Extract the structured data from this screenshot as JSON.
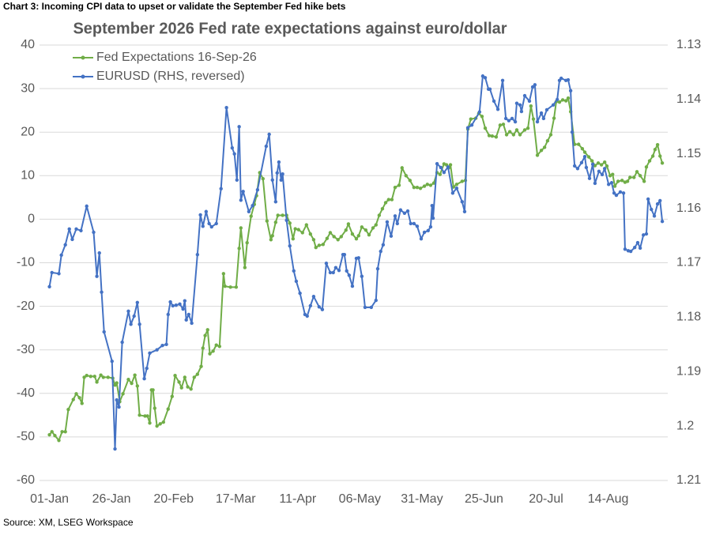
{
  "chart_data": {
    "type": "line",
    "header": "Chart 3: Incoming CPI data to upset or validate the September Fed hike bets",
    "title": "September 2026 Fed rate expectations against euro/dollar",
    "source": "Source: XM, LSEG Workspace",
    "xlim": [
      -4,
      249
    ],
    "xticks": [
      {
        "value": 0,
        "label": "01-Jan"
      },
      {
        "value": 25,
        "label": "26-Jan"
      },
      {
        "value": 50,
        "label": "20-Feb"
      },
      {
        "value": 75,
        "label": "17-Mar"
      },
      {
        "value": 100,
        "label": "11-Apr"
      },
      {
        "value": 125,
        "label": "06-May"
      },
      {
        "value": 150,
        "label": "31-May"
      },
      {
        "value": 175,
        "label": "25-Jun"
      },
      {
        "value": 200,
        "label": "20-Jul"
      },
      {
        "value": 225,
        "label": "14-Aug"
      }
    ],
    "ylim": [
      -60,
      40
    ],
    "yticks": [
      -60,
      -50,
      -40,
      -30,
      -20,
      -10,
      0,
      10,
      20,
      30,
      40
    ],
    "y2lim": [
      1.21,
      1.13
    ],
    "y2ticks": [
      1.13,
      1.14,
      1.15,
      1.16,
      1.17,
      1.18,
      1.19,
      1.2,
      1.21
    ],
    "grid": true,
    "legend": "upper left",
    "series": [
      {
        "name": "Fed Expectations 16-Sep-26",
        "color": "#70ad47",
        "x": [
          0,
          1.0,
          2.2,
          3.8,
          5.1,
          6.4,
          7.6,
          9.6,
          10.8,
          12.1,
          13.1,
          14.0,
          15.0,
          16.6,
          18.2,
          19.1,
          20.7,
          21.7,
          23.6,
          25.5,
          26.4,
          27.1,
          28.3,
          29.6,
          31.8,
          33.1,
          34.4,
          35.4,
          36.3,
          38.5,
          39.5,
          40.4,
          41.1,
          41.7,
          42.4,
          43.3,
          44.6,
          45.9,
          47.8,
          49.4,
          50.6,
          52.2,
          53.2,
          54.5,
          55.7,
          57.0,
          58.3,
          59.6,
          61.1,
          61.8,
          62.7,
          63.7,
          64.6,
          65.9,
          67.2,
          68.5,
          70.1,
          70.7,
          72.9,
          75.2,
          76.4,
          77.1,
          78.7,
          79.6,
          81.2,
          82.5,
          83.4,
          84.7,
          86.0,
          87.6,
          89.2,
          89.8,
          91.1,
          92.0,
          93.9,
          95.5,
          96.8,
          98.1,
          99.0,
          100.3,
          101.9,
          103.5,
          105.1,
          106.4,
          107.3,
          108.6,
          110.2,
          111.8,
          113.1,
          114.6,
          116.2,
          117.5,
          119.4,
          120.4,
          122.0,
          123.6,
          124.5,
          125.8,
          127.4,
          128.7,
          130.3,
          131.5,
          132.8,
          134.1,
          135.4,
          136.6,
          137.9,
          139.2,
          140.8,
          142.0,
          143.6,
          145.2,
          146.8,
          148.1,
          149.4,
          151.0,
          152.2,
          153.5,
          154.8,
          156.1,
          157.3,
          158.9,
          159.9,
          160.8,
          161.5,
          162.7,
          164.0,
          166.2,
          167.5,
          168.5,
          169.7,
          171.7,
          172.9,
          174.2,
          175.5,
          177.1,
          178.3,
          179.9,
          181.5,
          182.8,
          184.1,
          185.4,
          186.9,
          188.2,
          189.5,
          191.4,
          192.7,
          193.9,
          194.9,
          196.5,
          198.1,
          199.4,
          200.6,
          201.9,
          203.2,
          204.1,
          205.4,
          206.7,
          208.0,
          208.9,
          209.9,
          211.5,
          213.1,
          214.6,
          215.6,
          217.2,
          218.5,
          219.7,
          221.0,
          222.3,
          223.6,
          224.5,
          225.8,
          226.8,
          227.7,
          229.0,
          230.6,
          231.8,
          232.8,
          233.8,
          235.4,
          236.6,
          237.9,
          239.5,
          240.4,
          241.7,
          243.0,
          243.9,
          244.9,
          245.9,
          246.8
        ],
        "values": [
          -49.5,
          -48.8,
          -49.7,
          -50.8,
          -48.8,
          -48.8,
          -43.7,
          -41.4,
          -40.1,
          -41.0,
          -42.3,
          -36.3,
          -35.9,
          -36.1,
          -36.1,
          -37.4,
          -35.8,
          -36.3,
          -36.3,
          -36.5,
          -38.1,
          -37.6,
          -41.9,
          -40.1,
          -36.8,
          -37.7,
          -35.8,
          -38.3,
          -45.0,
          -45.2,
          -45.2,
          -46.8,
          -39.2,
          -39.2,
          -43.4,
          -47.5,
          -47.0,
          -46.6,
          -43.6,
          -40.7,
          -35.9,
          -37.4,
          -38.7,
          -36.3,
          -38.5,
          -39.0,
          -36.3,
          -35.6,
          -33.8,
          -29.6,
          -26.7,
          -25.4,
          -30.9,
          -30.3,
          -28.9,
          -29.2,
          -12.5,
          -15.4,
          -15.6,
          -15.6,
          -6.7,
          -2.0,
          -11.1,
          -5.4,
          0.7,
          3.4,
          5.4,
          10.7,
          9.3,
          -0.4,
          -4.7,
          -3.8,
          -0.7,
          0.9,
          0.9,
          0.9,
          -0.9,
          -4.5,
          -2.2,
          -2.4,
          -3.1,
          -1.3,
          -3.4,
          -4.7,
          -6.5,
          -6.0,
          -5.8,
          -4.4,
          -3.1,
          -4.0,
          -4.7,
          -4.0,
          -2.5,
          -1.1,
          -3.4,
          -4.5,
          -3.8,
          -1.8,
          -2.5,
          -3.6,
          -2.0,
          -1.3,
          0.9,
          2.4,
          3.8,
          4.5,
          4.5,
          7.3,
          7.8,
          11.8,
          10.0,
          8.9,
          7.3,
          7.3,
          7.1,
          7.6,
          8.0,
          7.8,
          8.3,
          10.7,
          10.3,
          12.7,
          12.5,
          11.8,
          12.5,
          7.4,
          8.0,
          8.7,
          8.9,
          20.7,
          23.0,
          23.2,
          24.3,
          23.6,
          20.9,
          19.2,
          19.1,
          18.9,
          21.6,
          21.8,
          19.4,
          20.1,
          19.4,
          20.5,
          19.4,
          20.5,
          20.9,
          26.0,
          23.0,
          14.7,
          15.8,
          16.5,
          18.0,
          19.4,
          23.2,
          27.0,
          26.9,
          27.4,
          27.2,
          27.8,
          24.7,
          17.2,
          17.2,
          16.2,
          15.4,
          14.3,
          13.4,
          12.3,
          12.9,
          12.5,
          13.1,
          12.2,
          10.0,
          10.3,
          7.6,
          8.7,
          8.9,
          8.5,
          8.7,
          9.6,
          9.6,
          10.9,
          10.0,
          8.7,
          12.0,
          13.4,
          14.5,
          16.0,
          17.1,
          14.5,
          12.9
        ]
      },
      {
        "name": "EURUSD (RHS, reversed)",
        "color": "#4472c4",
        "axis": "y2",
        "x": [
          0,
          1.0,
          3.8,
          4.8,
          6.4,
          8.0,
          9.2,
          10.8,
          12.7,
          15.0,
          17.8,
          19.1,
          20.1,
          21.0,
          22.0,
          25.2,
          26.4,
          27.1,
          28.0,
          29.3,
          31.8,
          32.8,
          34.1,
          35.4,
          36.3,
          38.2,
          39.2,
          40.4,
          43.3,
          45.5,
          47.1,
          47.8,
          48.7,
          49.7,
          51.0,
          52.5,
          53.8,
          54.5,
          55.1,
          56.1,
          57.3,
          59.6,
          60.8,
          61.8,
          63.1,
          64.3,
          65.3,
          67.2,
          69.1,
          71.3,
          73.6,
          74.5,
          75.5,
          76.4,
          77.1,
          78.0,
          80.3,
          81.8,
          83.8,
          87.3,
          88.5,
          89.8,
          91.1,
          91.7,
          92.4,
          93.3,
          93.9,
          95.5,
          96.8,
          98.4,
          99.4,
          100.9,
          102.9,
          103.8,
          105.1,
          106.4,
          108.6,
          109.9,
          111.5,
          113.1,
          114.3,
          115.3,
          116.6,
          118.2,
          118.8,
          119.7,
          120.7,
          122.0,
          123.6,
          124.5,
          125.8,
          127.1,
          129.6,
          131.5,
          132.2,
          133.4,
          134.4,
          136.0,
          137.6,
          139.2,
          140.1,
          141.4,
          143.0,
          144.3,
          145.5,
          146.8,
          148.1,
          149.7,
          151.0,
          152.5,
          153.5,
          154.1,
          154.5,
          156.1,
          157.6,
          158.9,
          160.5,
          162.4,
          164.0,
          166.2,
          167.2,
          168.5,
          170.1,
          173.2,
          174.5,
          175.5,
          176.8,
          177.4,
          179.0,
          180.6,
          182.5,
          183.8,
          185.0,
          186.3,
          187.6,
          188.2,
          189.5,
          190.1,
          191.4,
          193.3,
          194.6,
          195.5,
          196.5,
          198.1,
          199.0,
          200.3,
          202.9,
          204.5,
          205.4,
          206.1,
          208.0,
          208.9,
          209.9,
          210.5,
          211.5,
          212.7,
          214.3,
          215.6,
          216.2,
          217.5,
          218.8,
          219.7,
          221.3,
          222.6,
          223.6,
          225.2,
          226.4,
          227.4,
          228.3,
          229.9,
          231.2,
          231.8,
          233.1,
          234.1,
          235.7,
          236.9,
          237.9,
          239.2,
          240.4,
          241.1,
          242.4,
          243.6,
          244.9,
          245.9,
          246.8
        ],
        "values": [
          1.1744,
          1.1718,
          1.172,
          1.1686,
          1.1667,
          1.1638,
          1.1657,
          1.1638,
          1.1641,
          1.1596,
          1.1644,
          1.1725,
          1.1682,
          1.1754,
          1.1827,
          1.1881,
          1.2042,
          1.1952,
          1.1965,
          1.1846,
          1.1789,
          1.1813,
          1.1798,
          1.1773,
          1.1813,
          1.1913,
          1.1894,
          1.1866,
          1.186,
          1.1852,
          1.185,
          1.1795,
          1.1772,
          1.1779,
          1.1778,
          1.1776,
          1.1785,
          1.177,
          1.1805,
          1.1795,
          1.1811,
          1.1685,
          1.1612,
          1.1633,
          1.1606,
          1.1628,
          1.1634,
          1.1628,
          1.1564,
          1.1415,
          1.1489,
          1.15,
          1.1548,
          1.145,
          1.1585,
          1.1569,
          1.1606,
          1.1595,
          1.1566,
          1.1486,
          1.1464,
          1.1548,
          1.1588,
          1.1535,
          1.1515,
          1.1548,
          1.1537,
          1.1622,
          1.1669,
          1.1715,
          1.1734,
          1.1756,
          1.1795,
          1.1798,
          1.1779,
          1.1762,
          1.1781,
          1.1786,
          1.1701,
          1.1718,
          1.1718,
          1.1709,
          1.1714,
          1.1685,
          1.1685,
          1.1715,
          1.1723,
          1.1743,
          1.1692,
          1.1691,
          1.1725,
          1.1782,
          1.1782,
          1.1769,
          1.1711,
          1.1679,
          1.1667,
          1.1625,
          1.1651,
          1.1614,
          1.1628,
          1.1603,
          1.1609,
          1.1605,
          1.1628,
          1.1628,
          1.1633,
          1.1656,
          1.1644,
          1.1641,
          1.1634,
          1.1595,
          1.1618,
          1.1518,
          1.1525,
          1.1534,
          1.1524,
          1.1572,
          1.1563,
          1.1588,
          1.1606,
          1.1452,
          1.1447,
          1.1423,
          1.1357,
          1.136,
          1.1381,
          1.1381,
          1.1403,
          1.1418,
          1.1365,
          1.1435,
          1.1439,
          1.1435,
          1.1441,
          1.1407,
          1.141,
          1.1422,
          1.1393,
          1.1403,
          1.1377,
          1.1373,
          1.1441,
          1.1425,
          1.1435,
          1.1419,
          1.141,
          1.14,
          1.1365,
          1.1361,
          1.1365,
          1.1364,
          1.1384,
          1.146,
          1.1522,
          1.1527,
          1.1516,
          1.1505,
          1.1525,
          1.1545,
          1.1519,
          1.1554,
          1.1532,
          1.1538,
          1.1527,
          1.1556,
          1.1553,
          1.1572,
          1.1576,
          1.157,
          1.1572,
          1.1675,
          1.1678,
          1.1679,
          1.1672,
          1.1663,
          1.1673,
          1.1649,
          1.1647,
          1.1583,
          1.1602,
          1.1614,
          1.1592,
          1.1586,
          1.1624
        ]
      }
    ]
  }
}
